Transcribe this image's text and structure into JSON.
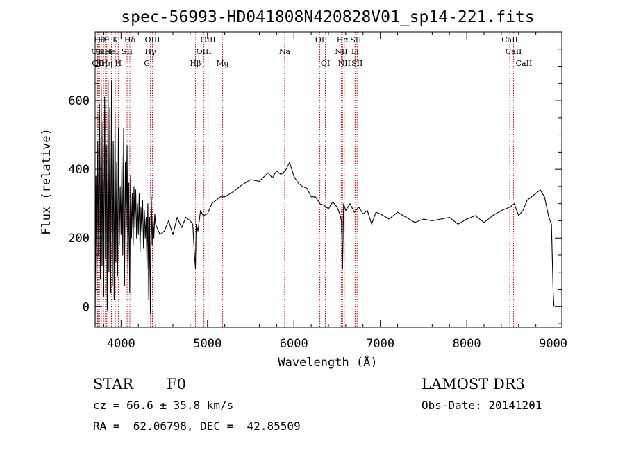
{
  "figure": {
    "title": "spec-56993-HD041808N420828V01_sp14-221.fits"
  },
  "info": {
    "class_label": "STAR",
    "subclass": "F0",
    "survey": "LAMOST DR3",
    "cz": "cz = 66.6 ± 35.8 km/s",
    "obs_date": "Obs-Date: 20141201",
    "coords": "RA =  62.06798, DEC =  42.85509"
  },
  "chart_data": {
    "type": "line",
    "title": "spec-56993-HD041808N420828V01_sp14-221.fits",
    "xlabel": "Wavelength (Å)",
    "ylabel": "Flux (relative)",
    "xlim": [
      3700,
      9100
    ],
    "ylim": [
      -60,
      800
    ],
    "xticks": [
      4000,
      5000,
      6000,
      7000,
      8000,
      9000
    ],
    "xtick_labels": [
      "4000",
      "5000",
      "6000",
      "7000",
      "8000",
      "9000"
    ],
    "yticks": [
      0,
      200,
      400,
      600
    ],
    "ytick_labels": [
      "0",
      "200",
      "400",
      "600"
    ],
    "grid": false,
    "line_color": "#000000",
    "marker_color": "#cc0000",
    "series": [
      {
        "x": [
          3700,
          3710,
          3720,
          3730,
          3740,
          3750,
          3760,
          3770,
          3780,
          3790,
          3800,
          3810,
          3820,
          3830,
          3840,
          3850,
          3860,
          3870,
          3880,
          3890,
          3900,
          3910,
          3920,
          3930,
          3940,
          3950,
          3960,
          3970,
          3980,
          3990,
          4000,
          4010,
          4020,
          4030,
          4040,
          4050,
          4060,
          4070,
          4080,
          4090,
          4100,
          4110,
          4120,
          4130,
          4140,
          4150,
          4160,
          4170,
          4180,
          4190,
          4200,
          4210,
          4220,
          4230,
          4240,
          4250,
          4260,
          4270,
          4280,
          4290,
          4300,
          4310,
          4320,
          4330,
          4340,
          4350,
          4360,
          4370,
          4380,
          4390,
          4400,
          4450,
          4500,
          4550,
          4600,
          4650,
          4700,
          4750,
          4800,
          4830,
          4850,
          4861,
          4870,
          4890,
          4920,
          4950,
          5000,
          5050,
          5100,
          5150,
          5200,
          5300,
          5400,
          5500,
          5600,
          5700,
          5750,
          5800,
          5850,
          5900,
          5950,
          6000,
          6050,
          6100,
          6150,
          6200,
          6250,
          6300,
          6350,
          6400,
          6450,
          6500,
          6530,
          6550,
          6563,
          6575,
          6600,
          6650,
          6700,
          6750,
          6800,
          6850,
          6900,
          6950,
          7000,
          7100,
          7200,
          7300,
          7400,
          7500,
          7600,
          7700,
          7800,
          7900,
          8000,
          8100,
          8200,
          8300,
          8400,
          8500,
          8550,
          8600,
          8650,
          8700,
          8750,
          8800,
          8850,
          8900,
          8950,
          8980,
          9000,
          9010
        ],
        "y": [
          -50,
          380,
          60,
          480,
          150,
          590,
          80,
          640,
          120,
          540,
          30,
          610,
          140,
          470,
          -10,
          660,
          100,
          580,
          40,
          655,
          60,
          480,
          20,
          560,
          130,
          420,
          90,
          520,
          180,
          350,
          210,
          440,
          150,
          520,
          60,
          420,
          230,
          470,
          90,
          360,
          40,
          380,
          200,
          330,
          180,
          350,
          230,
          340,
          200,
          300,
          210,
          330,
          160,
          290,
          220,
          310,
          170,
          280,
          200,
          260,
          110,
          300,
          20,
          260,
          -20,
          320,
          180,
          260,
          200,
          270,
          240,
          210,
          220,
          250,
          210,
          260,
          230,
          260,
          250,
          240,
          150,
          110,
          240,
          220,
          280,
          265,
          270,
          300,
          310,
          320,
          320,
          335,
          355,
          370,
          365,
          390,
          375,
          395,
          385,
          395,
          420,
          380,
          360,
          350,
          345,
          320,
          320,
          300,
          295,
          285,
          305,
          290,
          270,
          250,
          110,
          300,
          280,
          300,
          275,
          290,
          270,
          280,
          240,
          275,
          270,
          255,
          275,
          260,
          245,
          255,
          250,
          255,
          260,
          240,
          255,
          265,
          245,
          265,
          280,
          290,
          300,
          265,
          280,
          310,
          320,
          330,
          340,
          320,
          260,
          240,
          40,
          0
        ]
      }
    ],
    "lines": [
      {
        "wl": 3727,
        "row": 1,
        "label": "OII"
      },
      {
        "wl": 3734,
        "row": 2,
        "label": "OII"
      },
      {
        "wl": 3750,
        "row": 0,
        "label": "Hθ"
      },
      {
        "wl": 3771,
        "row": 2,
        "label": "Hη"
      },
      {
        "wl": 3797,
        "row": 0,
        "label": "Hθ"
      },
      {
        "wl": 3819,
        "row": 1,
        "label": "HeI"
      },
      {
        "wl": 3835,
        "row": 2,
        "label": "Hη"
      },
      {
        "wl": 3889,
        "row": 1,
        "label": "HeI"
      },
      {
        "wl": 3934,
        "row": 0,
        "label": "K"
      },
      {
        "wl": 3968,
        "row": 2,
        "label": "H"
      },
      {
        "wl": 4070,
        "row": 1,
        "label": "SII"
      },
      {
        "wl": 4102,
        "row": 0,
        "label": "Hδ"
      },
      {
        "wl": 4300,
        "row": 2,
        "label": "G"
      },
      {
        "wl": 4340,
        "row": 1,
        "label": "Hγ"
      },
      {
        "wl": 4363,
        "row": 0,
        "label": "OIII"
      },
      {
        "wl": 4861,
        "row": 2,
        "label": "Hβ"
      },
      {
        "wl": 4959,
        "row": 1,
        "label": "OIII"
      },
      {
        "wl": 5007,
        "row": 0,
        "label": "OIII"
      },
      {
        "wl": 5175,
        "row": 2,
        "label": "Mg"
      },
      {
        "wl": 5893,
        "row": 1,
        "label": "Na"
      },
      {
        "wl": 6300,
        "row": 0,
        "label": "OI"
      },
      {
        "wl": 6364,
        "row": 2,
        "label": "OI"
      },
      {
        "wl": 6548,
        "row": 1,
        "label": "NII"
      },
      {
        "wl": 6563,
        "row": 0,
        "label": "Hα"
      },
      {
        "wl": 6583,
        "row": 2,
        "label": "NII"
      },
      {
        "wl": 6708,
        "row": 1,
        "label": "Li"
      },
      {
        "wl": 6716,
        "row": 0,
        "label": "SII"
      },
      {
        "wl": 6731,
        "row": 2,
        "label": "SII"
      },
      {
        "wl": 8498,
        "row": 0,
        "label": "CaII"
      },
      {
        "wl": 8542,
        "row": 1,
        "label": "CaII"
      },
      {
        "wl": 8662,
        "row": 2,
        "label": "CaII"
      }
    ]
  }
}
